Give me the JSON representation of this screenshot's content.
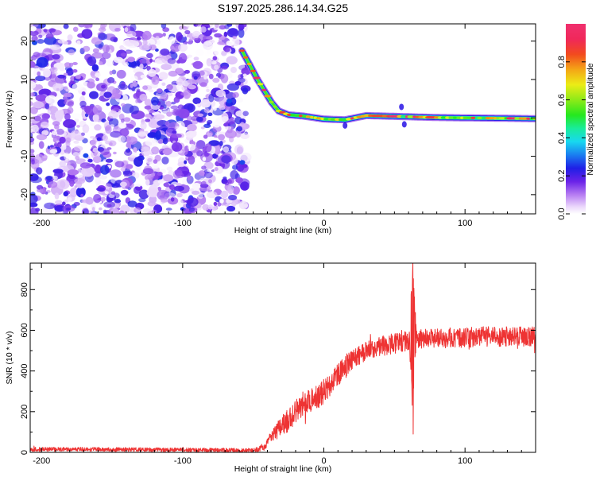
{
  "figure": {
    "title": "S197.2025.286.14.34.G25"
  },
  "chart_data": [
    {
      "type": "heatmap",
      "name": "spectrogram",
      "xlabel": "Height of straight line (km)",
      "ylabel": "Frequency (Hz)",
      "xlim": [
        -208,
        150
      ],
      "ylim": [
        -25,
        24.5
      ],
      "xticks": [
        -200,
        -100,
        0,
        100
      ],
      "yticks": [
        -20,
        -10,
        0,
        10,
        20
      ],
      "noise_region": {
        "x": [
          -208,
          -55
        ],
        "y": [
          -25,
          24.5
        ],
        "level_range": [
          0.0,
          0.25
        ]
      },
      "tone_track": {
        "description": "narrowband signal descending then flat near 0 Hz",
        "points": [
          {
            "x": -58,
            "y": 17.5
          },
          {
            "x": -52,
            "y": 13.5
          },
          {
            "x": -47,
            "y": 10.0
          },
          {
            "x": -42,
            "y": 7.0
          },
          {
            "x": -37,
            "y": 4.0
          },
          {
            "x": -32,
            "y": 1.8
          },
          {
            "x": -25,
            "y": 0.8
          },
          {
            "x": -15,
            "y": 0.5
          },
          {
            "x": 0,
            "y": -0.3
          },
          {
            "x": 15,
            "y": -0.5
          },
          {
            "x": 30,
            "y": 0.6
          },
          {
            "x": 50,
            "y": 0.4
          },
          {
            "x": 80,
            "y": 0.1
          },
          {
            "x": 150,
            "y": -0.2
          }
        ],
        "amplitude": 0.95
      },
      "colorbar": {
        "label": "Normalized spectral amplitude",
        "range": [
          0,
          1
        ],
        "ticks": [
          0.0,
          0.2,
          0.4,
          0.6,
          0.8
        ],
        "tick_labels": [
          "0.0",
          "0.2",
          "0.4",
          "0.6",
          "0.8"
        ]
      }
    },
    {
      "type": "line",
      "name": "snr",
      "xlabel": "Height of straight line (km)",
      "ylabel": "SNR (10 * v/v)",
      "xlim": [
        -208,
        150
      ],
      "ylim": [
        0,
        930
      ],
      "xticks": [
        -200,
        -100,
        0,
        100
      ],
      "yticks": [
        0,
        200,
        400,
        600,
        800
      ],
      "color": "#ee3333",
      "series": [
        {
          "name": "SNR",
          "x": [
            -208,
            -150,
            -100,
            -50,
            -42,
            -35,
            -25,
            -15,
            -5,
            5,
            15,
            25,
            35,
            45,
            55,
            60,
            64,
            70,
            80,
            100,
            120,
            150
          ],
          "y": [
            15,
            15,
            12,
            10,
            25,
            100,
            160,
            240,
            270,
            330,
            420,
            480,
            510,
            530,
            540,
            550,
            560,
            555,
            560,
            565,
            570,
            570
          ],
          "noise": [
            10,
            10,
            10,
            10,
            15,
            40,
            60,
            60,
            60,
            60,
            60,
            50,
            50,
            50,
            50,
            50,
            50,
            50,
            50,
            50,
            50,
            50
          ]
        }
      ],
      "spike": {
        "x": 63,
        "min": 90,
        "max": 930
      }
    }
  ]
}
